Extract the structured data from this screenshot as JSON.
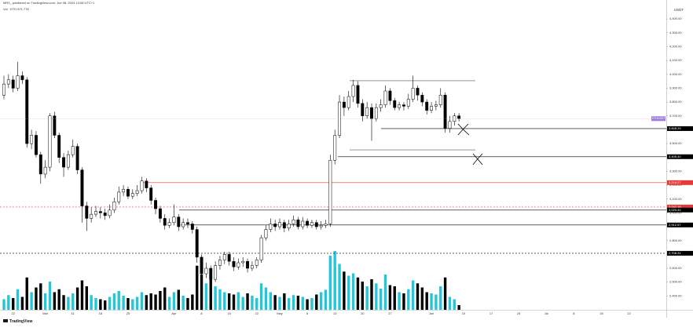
{
  "header": {
    "line1": "MR3_ published on TradingView.com, Jun 08, 2024 13:08 UTC+1",
    "line2": "Vol · ETH 871.77K"
  },
  "footer": {
    "brand": "TradingView"
  },
  "chart_data": {
    "type": "candlestick",
    "currency": "USDT",
    "symbol_tag": "ETHUSDT",
    "up_color": "#ffffff",
    "down_color": "#000000",
    "volume_up_color": "#26c6da",
    "volume_down_color": "#000000",
    "ylim": [
      2300,
      4480
    ],
    "vlim": [
      0,
      100
    ],
    "yticks": [
      {
        "value": 2400,
        "label": "2,400.00"
      },
      {
        "value": 2500,
        "label": "2,500.00"
      },
      {
        "value": 2600,
        "label": "2,600.00"
      },
      {
        "value": 2700,
        "label": "2,700.00"
      },
      {
        "value": 2800,
        "label": "2,800.00"
      },
      {
        "value": 2900,
        "label": "2,900.00"
      },
      {
        "value": 3000,
        "label": "3,000.00"
      },
      {
        "value": 3100,
        "label": "3,100.00"
      },
      {
        "value": 3200,
        "label": "3,200.00"
      },
      {
        "value": 3300,
        "label": "3,300.00"
      },
      {
        "value": 3400,
        "label": "3,400.00"
      },
      {
        "value": 3500,
        "label": "3,500.00"
      },
      {
        "value": 3600,
        "label": "3,600.00"
      },
      {
        "value": 3700,
        "label": "3,700.00"
      },
      {
        "value": 3800,
        "label": "3,800.00"
      },
      {
        "value": 3900,
        "label": "3,900.00"
      },
      {
        "value": 4000,
        "label": "4,000.00"
      },
      {
        "value": 4100,
        "label": "4,100.00"
      },
      {
        "value": 4200,
        "label": "4,200.00"
      },
      {
        "value": 4300,
        "label": "4,300.00"
      },
      {
        "value": 4400,
        "label": "4,400.00"
      }
    ],
    "categories": [
      null,
      null,
      "22",
      null,
      null,
      null,
      null,
      null,
      null,
      "Mar",
      null,
      null,
      null,
      null,
      null,
      "11",
      null,
      null,
      null,
      null,
      null,
      "18",
      null,
      null,
      null,
      null,
      null,
      "25",
      null,
      null,
      null,
      null,
      null,
      null,
      null,
      null,
      null,
      "Apr",
      null,
      null,
      null,
      null,
      null,
      "8",
      null,
      null,
      null,
      null,
      null,
      "15",
      null,
      null,
      null,
      null,
      null,
      "22",
      null,
      null,
      null,
      null,
      "May",
      null,
      null,
      null,
      null,
      null,
      "6",
      null,
      null,
      null,
      null,
      null,
      "13",
      null,
      null,
      null,
      null,
      null,
      "20",
      null,
      null,
      null,
      null,
      null,
      "27",
      null,
      null,
      null,
      null,
      null,
      null,
      null,
      null,
      "Jun",
      null,
      null,
      null,
      null,
      null,
      null
    ],
    "x_future": [
      "10",
      "17",
      "24",
      "Jul",
      "8",
      "15",
      "22"
    ],
    "open": [
      3850,
      3930,
      3960,
      3900,
      3990,
      3960,
      3500,
      3560,
      3420,
      3280,
      3330,
      3700,
      3560,
      3400,
      3330,
      3420,
      3480,
      3310,
      3050,
      2960,
      2990,
      3010,
      3000,
      2980,
      3020,
      3080,
      3150,
      3170,
      3120,
      3140,
      3160,
      3230,
      3180,
      3090,
      3030,
      2960,
      2910,
      2930,
      2970,
      2900,
      2930,
      2920,
      2880,
      2680,
      2560,
      2600,
      2520,
      2620,
      2660,
      2700,
      2650,
      2610,
      2640,
      2650,
      2600,
      2620,
      2660,
      2820,
      2880,
      2920,
      2900,
      2930,
      2890,
      2920,
      2950,
      2900,
      2940,
      2910,
      2930,
      2900,
      2910,
      2920,
      3380,
      3560,
      3800,
      3760,
      3840,
      3920,
      3790,
      3700,
      3760,
      3680,
      3760,
      3780,
      3880,
      3810,
      3760,
      3780,
      3770,
      3820,
      3900,
      3850,
      3800,
      3740,
      3770,
      3780,
      3850,
      3610,
      3660,
      3700
    ],
    "high": [
      3990,
      4000,
      3990,
      4090,
      4020,
      3980,
      3600,
      3590,
      3440,
      3380,
      3720,
      3730,
      3580,
      3430,
      3450,
      3530,
      3500,
      3330,
      3080,
      3040,
      3050,
      3040,
      3030,
      3060,
      3110,
      3190,
      3200,
      3190,
      3170,
      3200,
      3260,
      3250,
      3200,
      3110,
      3050,
      2990,
      2960,
      3060,
      2990,
      2960,
      2960,
      2940,
      2900,
      2700,
      2640,
      2620,
      2650,
      2690,
      2720,
      2720,
      2680,
      2670,
      2680,
      2670,
      2650,
      2680,
      2840,
      2910,
      2960,
      2950,
      2960,
      2950,
      2950,
      2980,
      2970,
      2970,
      2960,
      2950,
      2950,
      2940,
      2950,
      3420,
      3600,
      3850,
      3840,
      3880,
      3960,
      3950,
      3820,
      3800,
      3790,
      3790,
      3820,
      3920,
      3900,
      3830,
      3800,
      3800,
      3860,
      3990,
      3920,
      3870,
      3820,
      3800,
      3810,
      3900,
      3870,
      3700,
      3720,
      3720
    ],
    "low": [
      3820,
      3900,
      3870,
      3880,
      3930,
      3470,
      3460,
      3400,
      3210,
      3250,
      3300,
      3540,
      3360,
      3260,
      3310,
      3400,
      3280,
      2930,
      2870,
      2930,
      2970,
      2960,
      2950,
      2960,
      3000,
      3060,
      3120,
      3100,
      3100,
      3120,
      3140,
      3150,
      3060,
      2990,
      2930,
      2880,
      2890,
      2910,
      2870,
      2880,
      2890,
      2850,
      2640,
      2490,
      2530,
      2440,
      2500,
      2590,
      2630,
      2620,
      2580,
      2590,
      2610,
      2570,
      2580,
      2600,
      2640,
      2800,
      2860,
      2870,
      2880,
      2860,
      2870,
      2900,
      2880,
      2880,
      2890,
      2890,
      2880,
      2880,
      2890,
      2900,
      3350,
      3540,
      3700,
      3740,
      3800,
      3760,
      3660,
      3680,
      3520,
      3660,
      3730,
      3760,
      3780,
      3740,
      3740,
      3740,
      3750,
      3800,
      3810,
      3770,
      3710,
      3720,
      3740,
      3760,
      3580,
      3580,
      3630,
      3660
    ],
    "close": [
      3930,
      3960,
      3900,
      3990,
      3960,
      3500,
      3560,
      3420,
      3280,
      3330,
      3700,
      3560,
      3400,
      3330,
      3420,
      3480,
      3310,
      3050,
      2960,
      2990,
      3010,
      3000,
      2980,
      3020,
      3080,
      3150,
      3170,
      3120,
      3140,
      3160,
      3230,
      3180,
      3090,
      3030,
      2960,
      2910,
      2930,
      2970,
      2900,
      2930,
      2920,
      2880,
      2680,
      2560,
      2600,
      2520,
      2620,
      2660,
      2700,
      2650,
      2610,
      2640,
      2650,
      2600,
      2620,
      2660,
      2820,
      2880,
      2920,
      2900,
      2930,
      2890,
      2920,
      2950,
      2900,
      2940,
      2910,
      2930,
      2900,
      2910,
      2920,
      3380,
      3560,
      3800,
      3760,
      3840,
      3920,
      3790,
      3700,
      3760,
      3680,
      3760,
      3780,
      3880,
      3810,
      3760,
      3780,
      3770,
      3820,
      3900,
      3850,
      3800,
      3740,
      3770,
      3780,
      3850,
      3610,
      3660,
      3700,
      3680
    ],
    "volume": [
      18,
      25,
      20,
      35,
      22,
      55,
      30,
      38,
      45,
      28,
      48,
      30,
      35,
      25,
      22,
      28,
      38,
      50,
      40,
      25,
      20,
      18,
      16,
      22,
      28,
      32,
      24,
      20,
      18,
      22,
      30,
      25,
      28,
      26,
      32,
      38,
      22,
      30,
      34,
      24,
      20,
      26,
      75,
      60,
      45,
      55,
      40,
      35,
      30,
      28,
      26,
      30,
      22,
      28,
      24,
      20,
      45,
      38,
      30,
      25,
      22,
      28,
      20,
      25,
      24,
      22,
      18,
      20,
      26,
      30,
      34,
      92,
      100,
      78,
      65,
      58,
      62,
      55,
      48,
      40,
      52,
      45,
      36,
      60,
      42,
      40,
      30,
      28,
      35,
      50,
      45,
      38,
      30,
      28,
      26,
      40,
      55,
      22,
      18,
      8
    ],
    "range_lines": [
      3954,
      3455
    ],
    "levels": [
      {
        "value": 3608.29,
        "label": "3,608.29",
        "color": "#000000",
        "dashed": false
      },
      {
        "value": 3405.4,
        "label": "3,405.40",
        "color": "#000000",
        "dashed": false
      },
      {
        "value": 3218.27,
        "label": "3,218.27",
        "color": "#e53935",
        "dashed": false
      },
      {
        "value": 3042.18,
        "label": "3,042.18",
        "color": "#e53935",
        "dashed": true
      },
      {
        "value": 3020.44,
        "label": "3,020.44",
        "color": "#000000",
        "dashed": false
      },
      {
        "value": 2912.57,
        "label": "2,912.57",
        "color": "#000000",
        "dashed": false
      },
      {
        "value": 2708.31,
        "label": "2,708.31",
        "color": "#000000",
        "dashed": true
      }
    ]
  }
}
